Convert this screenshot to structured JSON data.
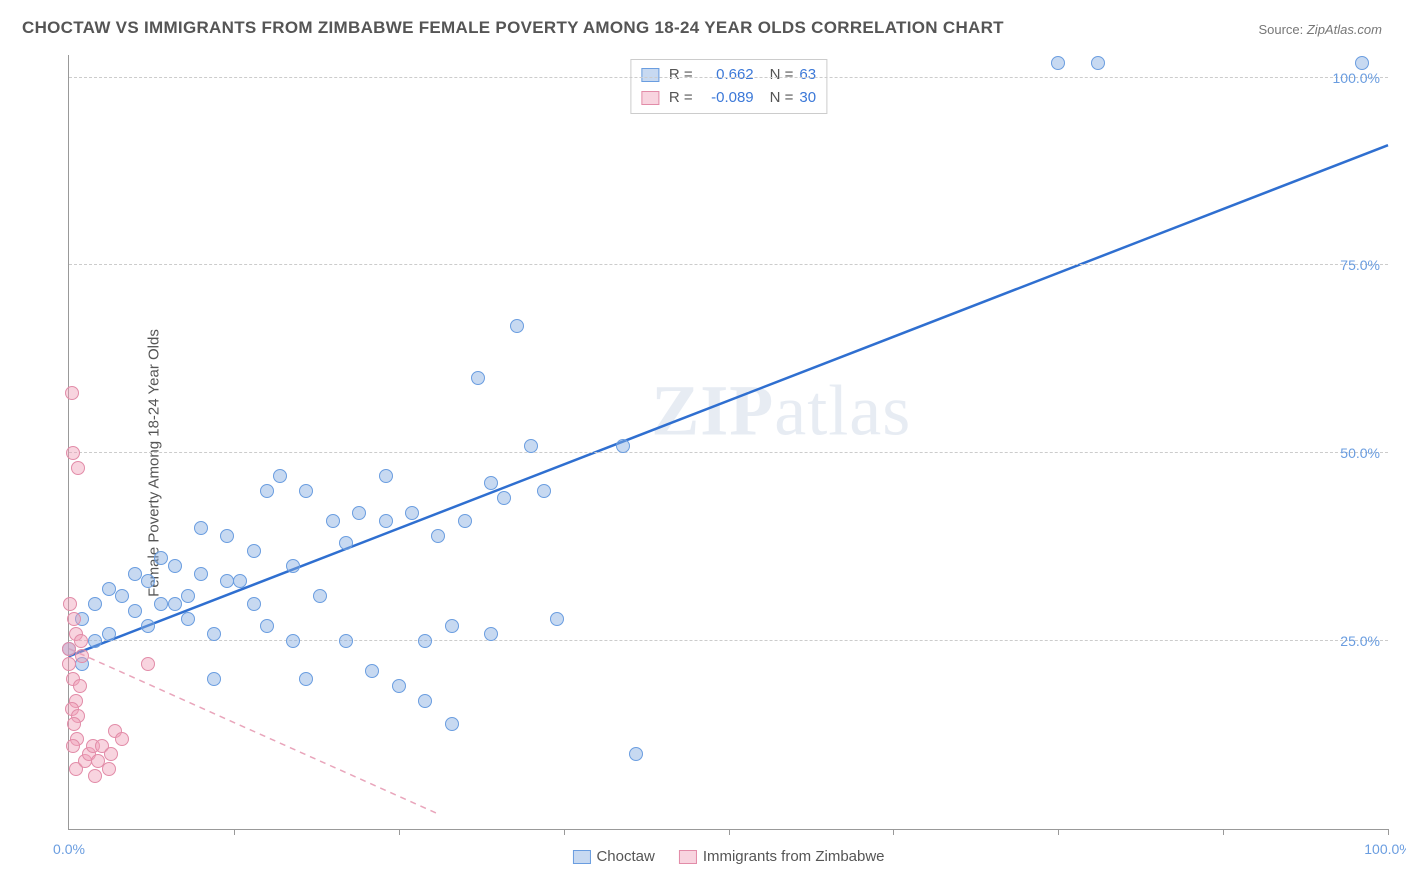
{
  "title": "CHOCTAW VS IMMIGRANTS FROM ZIMBABWE FEMALE POVERTY AMONG 18-24 YEAR OLDS CORRELATION CHART",
  "source_label": "Source: ",
  "source_value": "ZipAtlas.com",
  "y_axis_label": "Female Poverty Among 18-24 Year Olds",
  "watermark_a": "ZIP",
  "watermark_b": "atlas",
  "chart": {
    "type": "scatter",
    "xlim": [
      0,
      100
    ],
    "ylim": [
      0,
      103
    ],
    "background_color": "#ffffff",
    "grid_color": "#cccccc",
    "axis_color": "#999999",
    "y_ticks": [
      25,
      50,
      75,
      100
    ],
    "y_tick_labels": [
      "25.0%",
      "50.0%",
      "75.0%",
      "100.0%"
    ],
    "x_bottom_ticks": [
      12.5,
      25,
      37.5,
      50,
      62.5,
      75,
      87.5,
      100
    ],
    "x_tick_labels": {
      "0": "0.0%",
      "100": "100.0%"
    },
    "marker_radius": 7,
    "marker_stroke_width": 1,
    "series": [
      {
        "name": "Choctaw",
        "fill": "rgba(130,170,225,0.45)",
        "stroke": "#6a9de0",
        "r_value": "0.662",
        "n_value": "63",
        "regression": {
          "x1": 0,
          "y1": 23,
          "x2": 100,
          "y2": 91,
          "color": "#2f6fd0",
          "width": 2.5,
          "dash": "none"
        },
        "points": [
          [
            0,
            24
          ],
          [
            1,
            28
          ],
          [
            1,
            22
          ],
          [
            2,
            30
          ],
          [
            2,
            25
          ],
          [
            3,
            26
          ],
          [
            3,
            32
          ],
          [
            4,
            31
          ],
          [
            5,
            29
          ],
          [
            5,
            34
          ],
          [
            6,
            33
          ],
          [
            6,
            27
          ],
          [
            7,
            30
          ],
          [
            7,
            36
          ],
          [
            8,
            35
          ],
          [
            8,
            30
          ],
          [
            9,
            31
          ],
          [
            9,
            28
          ],
          [
            10,
            34
          ],
          [
            10,
            40
          ],
          [
            11,
            26
          ],
          [
            11,
            20
          ],
          [
            12,
            33
          ],
          [
            12,
            39
          ],
          [
            13,
            33
          ],
          [
            14,
            37
          ],
          [
            14,
            30
          ],
          [
            15,
            45
          ],
          [
            15,
            27
          ],
          [
            16,
            47
          ],
          [
            17,
            35
          ],
          [
            17,
            25
          ],
          [
            18,
            45
          ],
          [
            18,
            20
          ],
          [
            19,
            31
          ],
          [
            20,
            41
          ],
          [
            21,
            38
          ],
          [
            21,
            25
          ],
          [
            22,
            42
          ],
          [
            23,
            21
          ],
          [
            24,
            41
          ],
          [
            24,
            47
          ],
          [
            25,
            19
          ],
          [
            26,
            42
          ],
          [
            27,
            25
          ],
          [
            27,
            17
          ],
          [
            28,
            39
          ],
          [
            29,
            27
          ],
          [
            29,
            14
          ],
          [
            30,
            41
          ],
          [
            31,
            60
          ],
          [
            32,
            46
          ],
          [
            32,
            26
          ],
          [
            33,
            44
          ],
          [
            34,
            67
          ],
          [
            35,
            51
          ],
          [
            36,
            45
          ],
          [
            37,
            28
          ],
          [
            42,
            51
          ],
          [
            43,
            10
          ],
          [
            75,
            102
          ],
          [
            78,
            102
          ],
          [
            98,
            102
          ]
        ]
      },
      {
        "name": "Immigrants from Zimbabwe",
        "fill": "rgba(240,160,185,0.45)",
        "stroke": "#e28ca8",
        "r_value": "-0.089",
        "n_value": "30",
        "regression": {
          "x1": 0,
          "y1": 24,
          "x2": 28,
          "y2": 2,
          "color": "#e9a5bb",
          "width": 1.5,
          "dash": "6 5"
        },
        "points": [
          [
            0,
            24
          ],
          [
            0,
            22
          ],
          [
            0.5,
            26
          ],
          [
            0.3,
            20
          ],
          [
            0.8,
            19
          ],
          [
            0.5,
            17
          ],
          [
            0.2,
            16
          ],
          [
            0.7,
            15
          ],
          [
            0.4,
            14
          ],
          [
            1,
            23
          ],
          [
            0.6,
            12
          ],
          [
            0.3,
            11
          ],
          [
            0.9,
            25
          ],
          [
            0.4,
            28
          ],
          [
            0.1,
            30
          ],
          [
            0.7,
            48
          ],
          [
            0.3,
            50
          ],
          [
            0.2,
            58
          ],
          [
            0.5,
            8
          ],
          [
            1.2,
            9
          ],
          [
            1.5,
            10
          ],
          [
            1.8,
            11
          ],
          [
            2,
            7
          ],
          [
            2.2,
            9
          ],
          [
            2.5,
            11
          ],
          [
            3,
            8
          ],
          [
            3.2,
            10
          ],
          [
            3.5,
            13
          ],
          [
            4,
            12
          ],
          [
            6,
            22
          ]
        ]
      }
    ]
  },
  "legend_bottom": [
    {
      "label": "Choctaw",
      "fill": "rgba(130,170,225,0.45)",
      "stroke": "#6a9de0"
    },
    {
      "label": "Immigrants from Zimbabwe",
      "fill": "rgba(240,160,185,0.45)",
      "stroke": "#e28ca8"
    }
  ],
  "legend_top_labels": {
    "r": "R =",
    "n": "N ="
  }
}
